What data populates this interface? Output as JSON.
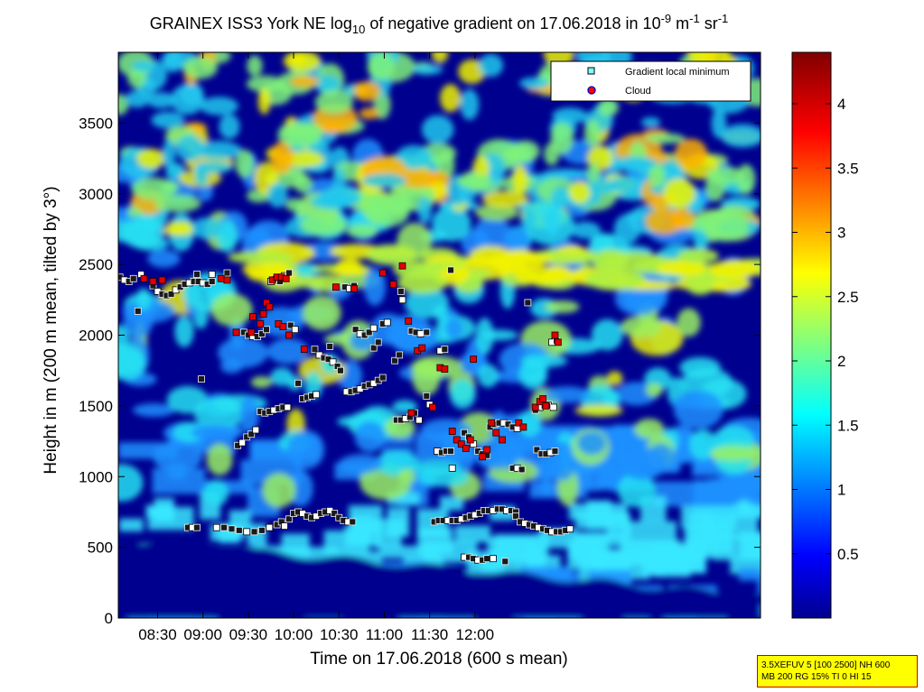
{
  "chart_data": {
    "type": "heatmap",
    "title": "GRAINEX ISS3 York NE log",
    "title_sub": "10",
    "title_rest": " of negative gradient on 17.06.2018 in 10",
    "title_exp1": "-9",
    "title_unit1": " m",
    "title_exp2": "-1",
    "title_unit2": " sr",
    "title_exp3": "-1",
    "xlabel": "Time on 17.06.2018 (600 s mean)",
    "ylabel": "Height in m (200 m mean, tilted by 3°)",
    "xlim": [
      484,
      909
    ],
    "ylim": [
      0,
      4000
    ],
    "x_ticks": [
      {
        "value": 510,
        "label": "08:30"
      },
      {
        "value": 540,
        "label": "09:00"
      },
      {
        "value": 570,
        "label": "09:30"
      },
      {
        "value": 600,
        "label": "10:00"
      },
      {
        "value": 630,
        "label": "10:30"
      },
      {
        "value": 660,
        "label": "11:00"
      },
      {
        "value": 690,
        "label": "11:30"
      },
      {
        "value": 720,
        "label": "12:00"
      }
    ],
    "y_ticks": [
      {
        "value": 0,
        "label": "0"
      },
      {
        "value": 500,
        "label": "500"
      },
      {
        "value": 1000,
        "label": "1000"
      },
      {
        "value": 1500,
        "label": "1500"
      },
      {
        "value": 2000,
        "label": "2000"
      },
      {
        "value": 2500,
        "label": "2500"
      },
      {
        "value": 3000,
        "label": "3000"
      },
      {
        "value": 3500,
        "label": "3500"
      }
    ],
    "colorbar": {
      "clim": [
        0,
        4.4
      ],
      "ticks": [
        {
          "value": 0.5,
          "label": "0.5"
        },
        {
          "value": 1,
          "label": "1"
        },
        {
          "value": 1.5,
          "label": "1.5"
        },
        {
          "value": 2,
          "label": "2"
        },
        {
          "value": 2.5,
          "label": "2.5"
        },
        {
          "value": 3,
          "label": "3"
        },
        {
          "value": 3.5,
          "label": "3.5"
        },
        {
          "value": 4,
          "label": "4"
        }
      ],
      "colormap": "jet"
    },
    "legend": {
      "placement": "top-right",
      "entries": [
        {
          "label": "Gradient local minimum",
          "marker": "square",
          "color": "#7fffff"
        },
        {
          "label": "Cloud",
          "marker": "circle",
          "color": "#ff0000",
          "edge": "#0000c0"
        }
      ]
    },
    "series": [
      {
        "name": "Gradient local minimum",
        "points": [
          [
            485,
            2410
          ],
          [
            488,
            2390
          ],
          [
            491,
            2380
          ],
          [
            494,
            2400
          ],
          [
            499,
            2430
          ],
          [
            497,
            2170
          ],
          [
            507,
            2350
          ],
          [
            510,
            2310
          ],
          [
            513,
            2290
          ],
          [
            516,
            2280
          ],
          [
            519,
            2290
          ],
          [
            522,
            2320
          ],
          [
            525,
            2340
          ],
          [
            528,
            2360
          ],
          [
            531,
            2370
          ],
          [
            534,
            2380
          ],
          [
            537,
            2380
          ],
          [
            540,
            2370
          ],
          [
            543,
            2360
          ],
          [
            546,
            2380
          ],
          [
            536,
            2430
          ],
          [
            546,
            2430
          ],
          [
            556,
            2440
          ],
          [
            530,
            640
          ],
          [
            533,
            640
          ],
          [
            536,
            640
          ],
          [
            539,
            1690
          ],
          [
            549,
            640
          ],
          [
            554,
            640
          ],
          [
            559,
            630
          ],
          [
            564,
            620
          ],
          [
            569,
            610
          ],
          [
            574,
            610
          ],
          [
            579,
            620
          ],
          [
            584,
            640
          ],
          [
            589,
            660
          ],
          [
            592,
            680
          ],
          [
            594,
            650
          ],
          [
            597,
            700
          ],
          [
            600,
            740
          ],
          [
            603,
            750
          ],
          [
            606,
            740
          ],
          [
            609,
            720
          ],
          [
            612,
            710
          ],
          [
            615,
            720
          ],
          [
            618,
            740
          ],
          [
            621,
            750
          ],
          [
            624,
            760
          ],
          [
            627,
            740
          ],
          [
            630,
            710
          ],
          [
            633,
            690
          ],
          [
            636,
            680
          ],
          [
            639,
            680
          ],
          [
            563,
            1220
          ],
          [
            566,
            1240
          ],
          [
            569,
            1280
          ],
          [
            572,
            1300
          ],
          [
            575,
            1330
          ],
          [
            578,
            1460
          ],
          [
            581,
            1450
          ],
          [
            584,
            1460
          ],
          [
            587,
            1470
          ],
          [
            590,
            1480
          ],
          [
            593,
            1490
          ],
          [
            596,
            1490
          ],
          [
            567,
            2020
          ],
          [
            570,
            2000
          ],
          [
            573,
            1990
          ],
          [
            576,
            1990
          ],
          [
            579,
            2010
          ],
          [
            582,
            2040
          ],
          [
            585,
            2380
          ],
          [
            588,
            2400
          ],
          [
            591,
            2380
          ],
          [
            594,
            2420
          ],
          [
            597,
            2440
          ],
          [
            598,
            2070
          ],
          [
            601,
            2040
          ],
          [
            606,
            1550
          ],
          [
            609,
            1560
          ],
          [
            612,
            1570
          ],
          [
            615,
            1580
          ],
          [
            603,
            1660
          ],
          [
            614,
            1900
          ],
          [
            617,
            1860
          ],
          [
            620,
            1840
          ],
          [
            623,
            1830
          ],
          [
            626,
            1810
          ],
          [
            629,
            1780
          ],
          [
            631,
            1750
          ],
          [
            624,
            1920
          ],
          [
            635,
            1600
          ],
          [
            638,
            1600
          ],
          [
            641,
            1610
          ],
          [
            644,
            1620
          ],
          [
            647,
            1640
          ],
          [
            650,
            1650
          ],
          [
            653,
            1660
          ],
          [
            656,
            1680
          ],
          [
            659,
            1700
          ],
          [
            634,
            2340
          ],
          [
            637,
            2330
          ],
          [
            640,
            2350
          ],
          [
            641,
            2040
          ],
          [
            644,
            2010
          ],
          [
            647,
            2000
          ],
          [
            650,
            2020
          ],
          [
            653,
            2050
          ],
          [
            653,
            1910
          ],
          [
            656,
            1950
          ],
          [
            659,
            2080
          ],
          [
            662,
            2090
          ],
          [
            668,
            1400
          ],
          [
            671,
            1400
          ],
          [
            674,
            1410
          ],
          [
            677,
            1420
          ],
          [
            680,
            1450
          ],
          [
            683,
            1400
          ],
          [
            667,
            1820
          ],
          [
            670,
            1860
          ],
          [
            671,
            2310
          ],
          [
            672,
            2250
          ],
          [
            678,
            2030
          ],
          [
            681,
            2020
          ],
          [
            684,
            2010
          ],
          [
            688,
            2020
          ],
          [
            688,
            1570
          ],
          [
            690,
            1510
          ],
          [
            693,
            680
          ],
          [
            696,
            690
          ],
          [
            699,
            690
          ],
          [
            702,
            690
          ],
          [
            705,
            690
          ],
          [
            708,
            690
          ],
          [
            711,
            700
          ],
          [
            714,
            710
          ],
          [
            717,
            720
          ],
          [
            720,
            730
          ],
          [
            723,
            740
          ],
          [
            726,
            760
          ],
          [
            729,
            760
          ],
          [
            732,
            760
          ],
          [
            735,
            770
          ],
          [
            738,
            770
          ],
          [
            741,
            760
          ],
          [
            744,
            760
          ],
          [
            747,
            750
          ],
          [
            695,
            1180
          ],
          [
            698,
            1170
          ],
          [
            701,
            1180
          ],
          [
            704,
            1180
          ],
          [
            697,
            1890
          ],
          [
            700,
            1900
          ],
          [
            704,
            2460
          ],
          [
            705,
            1060
          ],
          [
            713,
            1310
          ],
          [
            716,
            1280
          ],
          [
            719,
            1230
          ],
          [
            722,
            1180
          ],
          [
            725,
            1160
          ],
          [
            728,
            1150
          ],
          [
            713,
            430
          ],
          [
            716,
            430
          ],
          [
            719,
            420
          ],
          [
            722,
            410
          ],
          [
            725,
            410
          ],
          [
            728,
            420
          ],
          [
            732,
            420
          ],
          [
            730,
            1350
          ],
          [
            733,
            1370
          ],
          [
            736,
            1380
          ],
          [
            739,
            1380
          ],
          [
            742,
            1370
          ],
          [
            745,
            1350
          ],
          [
            748,
            1340
          ],
          [
            740,
            400
          ],
          [
            745,
            1060
          ],
          [
            748,
            1060
          ],
          [
            751,
            1050
          ],
          [
            747,
            720
          ],
          [
            750,
            680
          ],
          [
            753,
            670
          ],
          [
            756,
            660
          ],
          [
            759,
            650
          ],
          [
            762,
            640
          ],
          [
            765,
            630
          ],
          [
            768,
            620
          ],
          [
            771,
            610
          ],
          [
            774,
            610
          ],
          [
            777,
            610
          ],
          [
            780,
            620
          ],
          [
            783,
            630
          ],
          [
            755,
            2230
          ],
          [
            760,
            1470
          ],
          [
            763,
            1490
          ],
          [
            766,
            1500
          ],
          [
            769,
            1510
          ],
          [
            772,
            1490
          ],
          [
            761,
            1190
          ],
          [
            764,
            1160
          ],
          [
            767,
            1160
          ],
          [
            770,
            1170
          ],
          [
            773,
            1180
          ],
          [
            768,
            1500
          ],
          [
            771,
            1950
          ],
          [
            774,
            1960
          ]
        ]
      },
      {
        "name": "Cloud",
        "points": [
          [
            501,
            2400
          ],
          [
            507,
            2380
          ],
          [
            513,
            2390
          ],
          [
            552,
            2400
          ],
          [
            556,
            2390
          ],
          [
            562,
            2020
          ],
          [
            572,
            2020
          ],
          [
            573,
            2130
          ],
          [
            578,
            2080
          ],
          [
            580,
            2150
          ],
          [
            582,
            2230
          ],
          [
            584,
            2200
          ],
          [
            586,
            2390
          ],
          [
            589,
            2410
          ],
          [
            592,
            2410
          ],
          [
            595,
            2400
          ],
          [
            590,
            2080
          ],
          [
            593,
            2060
          ],
          [
            597,
            2000
          ],
          [
            607,
            1900
          ],
          [
            628,
            2340
          ],
          [
            640,
            2330
          ],
          [
            659,
            2440
          ],
          [
            666,
            2360
          ],
          [
            672,
            2490
          ],
          [
            676,
            2100
          ],
          [
            678,
            1450
          ],
          [
            682,
            1890
          ],
          [
            685,
            1910
          ],
          [
            692,
            1490
          ],
          [
            697,
            1770
          ],
          [
            700,
            1760
          ],
          [
            705,
            1320
          ],
          [
            708,
            1260
          ],
          [
            711,
            1230
          ],
          [
            714,
            1200
          ],
          [
            717,
            1260
          ],
          [
            719,
            1830
          ],
          [
            725,
            1140
          ],
          [
            728,
            1190
          ],
          [
            731,
            1380
          ],
          [
            734,
            1310
          ],
          [
            738,
            1260
          ],
          [
            749,
            1380
          ],
          [
            752,
            1350
          ],
          [
            760,
            1490
          ],
          [
            763,
            1530
          ],
          [
            765,
            1550
          ],
          [
            767,
            1500
          ],
          [
            773,
            2000
          ],
          [
            775,
            1950
          ]
        ]
      }
    ],
    "annotation_lines": [
      "3.5XEFUV 5 [100 2500] NH 600",
      "MB 200 RG 15% TI 0 HI 15"
    ]
  }
}
